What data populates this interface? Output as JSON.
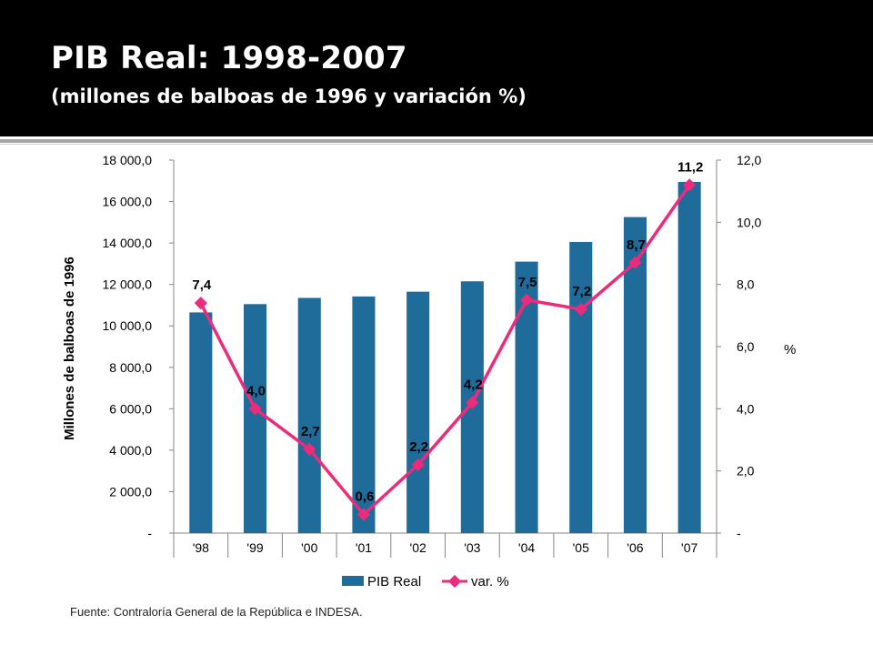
{
  "header": {
    "title": "PIB Real: 1998-2007",
    "subtitle": "(millones de balboas de 1996 y variación %)"
  },
  "chart_data": {
    "type": "bar",
    "categories": [
      "'98",
      "'99",
      "'00",
      "'01",
      "'02",
      "'03",
      "'04",
      "'05",
      "'06",
      "'07"
    ],
    "series": [
      {
        "name": "PIB Real",
        "type": "bar",
        "axis": "left",
        "color": "#1f6b9a",
        "values": [
          10650,
          11050,
          11350,
          11420,
          11650,
          12150,
          13100,
          14050,
          15250,
          16950
        ]
      },
      {
        "name": "var. %",
        "type": "line",
        "axis": "right",
        "color": "#ee2a7b",
        "values": [
          7.4,
          4.0,
          2.7,
          0.6,
          2.2,
          4.2,
          7.5,
          7.2,
          8.7,
          11.2
        ],
        "data_labels": [
          "7,4",
          "4,0",
          "2,7",
          "0,6",
          "2,2",
          "4,2",
          "7,5",
          "7,2",
          "8,7",
          "11,2"
        ]
      }
    ],
    "ylabel": "Millones de balboas de 1996",
    "ylim": [
      0,
      18000
    ],
    "y_ticks": [
      "-",
      "2 000,0",
      "4 000,0",
      "6 000,0",
      "8 000,0",
      "10 000,0",
      "12 000,0",
      "14 000,0",
      "16 000,0",
      "18 000,0"
    ],
    "y2label": "%",
    "y2lim": [
      0,
      12
    ],
    "y2_ticks": [
      "-",
      "2,0",
      "4,0",
      "6,0",
      "8,0",
      "10,0",
      "12,0"
    ],
    "grid": false,
    "legend": "bottom"
  },
  "source": "Fuente: Contraloría General de la República e INDESA."
}
